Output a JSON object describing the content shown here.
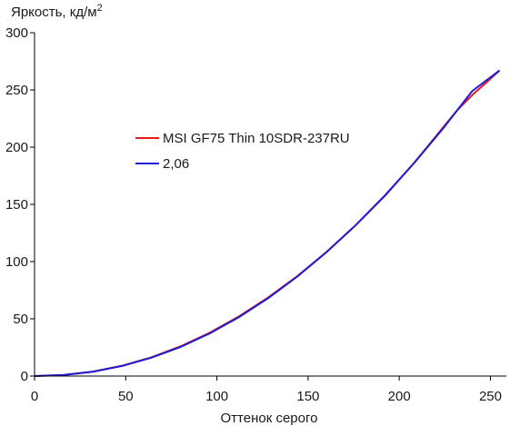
{
  "chart_data": {
    "type": "line",
    "ylabel": "Яркость, кд/м",
    "ylabel_superscript": "2",
    "xlabel": "Оттенок серого",
    "xlim": [
      0,
      255
    ],
    "ylim": [
      0,
      300
    ],
    "x_ticks": [
      0,
      50,
      100,
      150,
      200,
      250
    ],
    "y_ticks": [
      0,
      50,
      100,
      150,
      200,
      250,
      300
    ],
    "grid": false,
    "legend_position": "upper-left",
    "series": [
      {
        "name": "MSI GF75 Thin 10SDR-237RU",
        "color": "#e8151b",
        "x": [
          0,
          16,
          32,
          48,
          64,
          80,
          96,
          112,
          128,
          144,
          160,
          176,
          192,
          208,
          216,
          224,
          232,
          240,
          248,
          255
        ],
        "y": [
          0,
          1.0,
          3.9,
          9.0,
          16.3,
          25.9,
          37.8,
          52.0,
          68.5,
          87.2,
          108.2,
          131.6,
          157.2,
          186.0,
          201.5,
          217.2,
          232.6,
          245.5,
          256.8,
          267.0
        ]
      },
      {
        "name": "2,06",
        "color": "#1c1cd6",
        "x": [
          0,
          16,
          32,
          48,
          64,
          80,
          96,
          112,
          128,
          144,
          160,
          176,
          192,
          208,
          224,
          240,
          255
        ],
        "y": [
          0,
          0.9,
          3.8,
          8.8,
          16.0,
          25.4,
          37.2,
          51.4,
          67.9,
          86.8,
          108.1,
          131.7,
          157.6,
          185.8,
          216.3,
          249.0,
          267.0
        ]
      }
    ]
  }
}
